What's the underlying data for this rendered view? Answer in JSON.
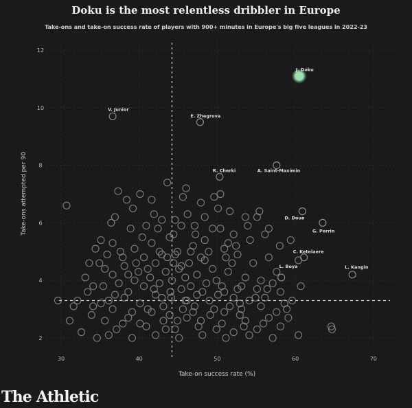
{
  "chart_data": {
    "type": "scatter",
    "title": "Doku is the most relentless dribbler in Europe",
    "subtitle": "Take-ons and take-on success rate of players with 900+ minutes in Europe's big five leagues in 2022-23",
    "xlabel": "Take-on success rate (%)",
    "ylabel": "Take-ons attempted per 90",
    "xlim": [
      27,
      75
    ],
    "ylim": [
      1.6,
      12.4
    ],
    "xticks": [
      "30",
      "40",
      "50",
      "60",
      "70"
    ],
    "xtick_values": [
      30,
      40,
      50,
      60,
      70
    ],
    "yticks": [
      "2",
      "4",
      "6",
      "8",
      "10",
      "12"
    ],
    "ytick_values": [
      2,
      4,
      6,
      8,
      10,
      12
    ],
    "grid": true,
    "reference_lines": {
      "x_average": 44.2,
      "y_average": 3.3
    },
    "colors": {
      "background": "#1a1a1a",
      "point": "#8a8a8a",
      "highlight": "#9de0b4",
      "label": "#e0e0e0"
    },
    "highlighted": [
      {
        "name": "J. Doku",
        "x": 60.5,
        "y": 11.1
      }
    ],
    "labeled": [
      {
        "name": "V. Junior",
        "x": 36.6,
        "y": 9.7
      },
      {
        "name": "E. Zhegrova",
        "x": 47.8,
        "y": 9.5
      },
      {
        "name": "R. Cherki",
        "x": 50.3,
        "y": 7.6
      },
      {
        "name": "A. Saint-Maximin",
        "x": 57.6,
        "y": 8.0
      },
      {
        "name": "D. Doue",
        "x": 60.9,
        "y": 6.4
      },
      {
        "name": "G. Perrin",
        "x": 63.5,
        "y": 6.0
      },
      {
        "name": "C. Ketelaere",
        "x": 61.1,
        "y": 4.8
      },
      {
        "name": "L. Boya",
        "x": 58.2,
        "y": 4.1
      },
      {
        "name": "L. Kangin",
        "x": 67.3,
        "y": 4.2
      }
    ],
    "points": [
      [
        30.7,
        6.6
      ],
      [
        37.3,
        7.1
      ],
      [
        39.2,
        6.5
      ],
      [
        41.6,
        6.8
      ],
      [
        46.0,
        7.2
      ],
      [
        45.6,
        6.9
      ],
      [
        36.9,
        6.2
      ],
      [
        40.1,
        7.0
      ],
      [
        43.6,
        7.4
      ],
      [
        47.9,
        6.7
      ],
      [
        35.1,
        5.4
      ],
      [
        36.4,
        6.0
      ],
      [
        38.9,
        5.8
      ],
      [
        40.4,
        5.5
      ],
      [
        42.4,
        5.8
      ],
      [
        44.6,
        6.1
      ],
      [
        46.2,
        6.3
      ],
      [
        48.4,
        6.2
      ],
      [
        50.1,
        6.5
      ],
      [
        51.6,
        6.4
      ],
      [
        53.6,
        6.2
      ],
      [
        55.4,
        6.4
      ],
      [
        56.6,
        5.8
      ],
      [
        54.2,
        5.4
      ],
      [
        52.1,
        5.6
      ],
      [
        49.4,
        5.8
      ],
      [
        47.2,
        5.6
      ],
      [
        45.4,
        5.9
      ],
      [
        43.9,
        5.5
      ],
      [
        41.6,
        5.3
      ],
      [
        39.4,
        5.1
      ],
      [
        37.6,
        5.0
      ],
      [
        35.9,
        4.9
      ],
      [
        34.4,
        5.1
      ],
      [
        33.6,
        4.6
      ],
      [
        35.6,
        4.4
      ],
      [
        38.1,
        4.5
      ],
      [
        40.6,
        4.8
      ],
      [
        42.9,
        4.9
      ],
      [
        44.9,
        5.0
      ],
      [
        46.9,
        5.2
      ],
      [
        48.9,
        5.0
      ],
      [
        50.9,
        5.1
      ],
      [
        52.6,
        4.9
      ],
      [
        54.6,
        4.6
      ],
      [
        56.6,
        4.8
      ],
      [
        58.0,
        5.2
      ],
      [
        59.4,
        5.4
      ],
      [
        60.4,
        4.7
      ],
      [
        57.6,
        4.3
      ],
      [
        55.6,
        4.0
      ],
      [
        53.6,
        4.1
      ],
      [
        51.4,
        4.3
      ],
      [
        49.4,
        4.4
      ],
      [
        47.4,
        4.2
      ],
      [
        45.4,
        4.5
      ],
      [
        43.4,
        4.3
      ],
      [
        41.4,
        4.1
      ],
      [
        39.4,
        4.0
      ],
      [
        37.4,
        3.9
      ],
      [
        35.4,
        3.8
      ],
      [
        33.4,
        3.6
      ],
      [
        32.1,
        3.3
      ],
      [
        34.1,
        3.1
      ],
      [
        36.1,
        3.3
      ],
      [
        38.1,
        3.4
      ],
      [
        40.1,
        3.2
      ],
      [
        42.1,
        3.5
      ],
      [
        44.1,
        3.4
      ],
      [
        46.1,
        3.3
      ],
      [
        48.1,
        3.6
      ],
      [
        50.1,
        3.5
      ],
      [
        52.1,
        3.4
      ],
      [
        54.1,
        3.3
      ],
      [
        56.1,
        3.4
      ],
      [
        58.1,
        3.6
      ],
      [
        59.6,
        3.3
      ],
      [
        60.7,
        3.8
      ],
      [
        57.1,
        3.9
      ],
      [
        55.1,
        3.7
      ],
      [
        31.1,
        2.6
      ],
      [
        32.6,
        2.2
      ],
      [
        33.9,
        2.8
      ],
      [
        35.6,
        2.6
      ],
      [
        37.1,
        2.3
      ],
      [
        38.6,
        2.7
      ],
      [
        40.1,
        2.5
      ],
      [
        41.6,
        2.9
      ],
      [
        43.1,
        2.6
      ],
      [
        44.6,
        2.3
      ],
      [
        46.1,
        2.7
      ],
      [
        47.6,
        2.4
      ],
      [
        49.1,
        2.8
      ],
      [
        50.6,
        2.5
      ],
      [
        52.1,
        2.2
      ],
      [
        53.6,
        2.6
      ],
      [
        55.1,
        2.3
      ],
      [
        56.6,
        2.7
      ],
      [
        58.1,
        2.4
      ],
      [
        59.1,
        2.7
      ],
      [
        60.4,
        2.1
      ],
      [
        64.6,
        2.4
      ],
      [
        64.7,
        2.3
      ],
      [
        34.6,
        2.0
      ],
      [
        36.1,
        2.1
      ],
      [
        39.1,
        2.0
      ],
      [
        42.1,
        2.1
      ],
      [
        45.1,
        2.0
      ],
      [
        48.1,
        2.1
      ],
      [
        51.1,
        2.0
      ],
      [
        54.1,
        2.1
      ],
      [
        57.1,
        2.0
      ],
      [
        29.6,
        3.3
      ],
      [
        31.6,
        3.1
      ],
      [
        33.1,
        4.1
      ],
      [
        36.6,
        4.2
      ],
      [
        39.6,
        4.6
      ],
      [
        41.1,
        4.4
      ],
      [
        43.6,
        4.8
      ],
      [
        44.2,
        4.0
      ],
      [
        44.4,
        4.6
      ],
      [
        45.9,
        4.1
      ],
      [
        47.9,
        4.8
      ],
      [
        49.9,
        4.0
      ],
      [
        51.9,
        4.6
      ],
      [
        53.1,
        3.8
      ],
      [
        38.6,
        3.6
      ],
      [
        40.6,
        3.8
      ],
      [
        42.6,
        3.9
      ],
      [
        46.6,
        3.8
      ],
      [
        48.6,
        3.9
      ],
      [
        50.6,
        3.8
      ],
      [
        52.6,
        3.7
      ],
      [
        36.6,
        3.0
      ],
      [
        39.1,
        2.9
      ],
      [
        41.1,
        3.0
      ],
      [
        43.1,
        3.1
      ],
      [
        45.6,
        3.0
      ],
      [
        47.1,
        3.1
      ],
      [
        49.6,
        3.0
      ],
      [
        51.6,
        3.1
      ],
      [
        53.1,
        3.0
      ],
      [
        55.6,
        3.1
      ],
      [
        57.6,
        2.9
      ],
      [
        34.1,
        3.8
      ],
      [
        37.9,
        4.8
      ],
      [
        40.9,
        5.9
      ],
      [
        42.9,
        6.1
      ],
      [
        44.4,
        5.6
      ],
      [
        46.6,
        5.0
      ],
      [
        48.4,
        5.4
      ],
      [
        50.4,
        5.8
      ],
      [
        52.4,
        5.2
      ],
      [
        53.9,
        5.9
      ],
      [
        49.6,
        6.9
      ],
      [
        50.4,
        7.0
      ],
      [
        51.1,
        4.8
      ],
      [
        45.1,
        4.4
      ],
      [
        39.9,
        4.3
      ],
      [
        36.9,
        3.5
      ],
      [
        35.1,
        3.2
      ],
      [
        37.9,
        2.5
      ],
      [
        40.9,
        2.4
      ],
      [
        43.9,
        2.8
      ],
      [
        46.9,
        2.9
      ],
      [
        49.9,
        2.3
      ],
      [
        52.9,
        2.8
      ],
      [
        55.9,
        2.5
      ],
      [
        58.9,
        3.0
      ],
      [
        42.6,
        5.0
      ],
      [
        44.6,
        4.9
      ],
      [
        46.4,
        4.6
      ],
      [
        48.4,
        4.7
      ],
      [
        47.4,
        3.5
      ],
      [
        45.4,
        3.7
      ],
      [
        44.0,
        3.6
      ],
      [
        42.9,
        3.4
      ],
      [
        41.9,
        3.7
      ],
      [
        49.0,
        3.3
      ],
      [
        50.9,
        3.6
      ],
      [
        52.9,
        3.2
      ],
      [
        54.9,
        3.4
      ],
      [
        56.4,
        3.7
      ],
      [
        58.6,
        3.2
      ],
      [
        45.9,
        3.3
      ],
      [
        43.4,
        2.3
      ],
      [
        47.9,
        2.6
      ],
      [
        53.4,
        2.4
      ],
      [
        50.9,
        2.9
      ],
      [
        44.9,
        2.6
      ],
      [
        38.4,
        6.8
      ],
      [
        41.9,
        6.3
      ],
      [
        47.1,
        5.9
      ],
      [
        55.1,
        6.2
      ],
      [
        56.1,
        5.6
      ],
      [
        51.4,
        5.3
      ],
      [
        38.6,
        4.2
      ],
      [
        34.9,
        4.6
      ],
      [
        36.6,
        5.3
      ],
      [
        42.1,
        4.6
      ]
    ]
  },
  "branding": {
    "logo": "The Athletic"
  }
}
